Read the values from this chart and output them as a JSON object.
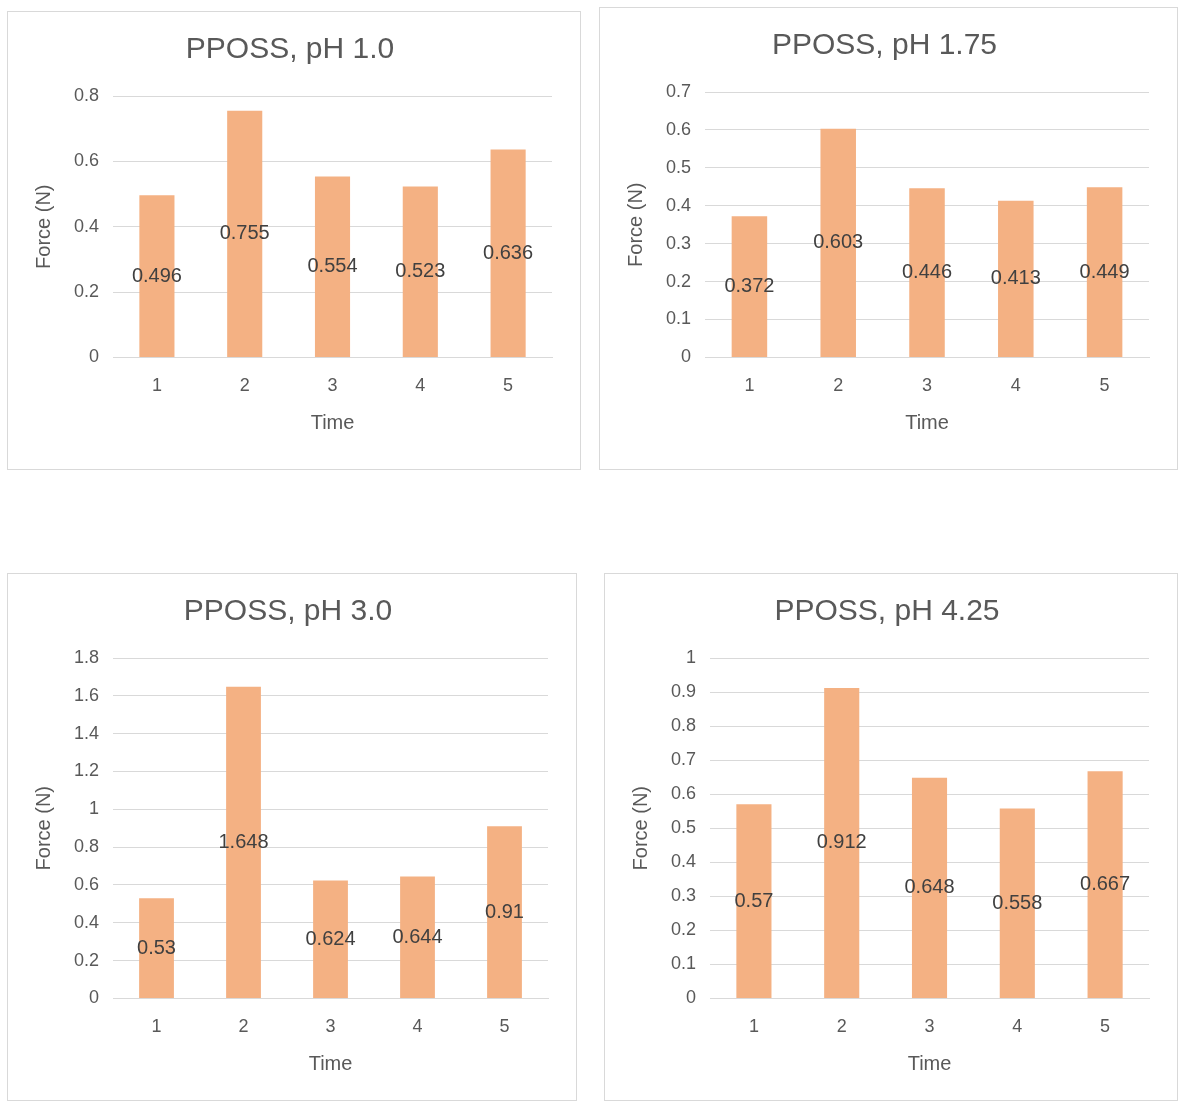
{
  "chart_data": [
    {
      "type": "bar",
      "title": "PPOSS, pH 1.0",
      "xlabel": "Time",
      "ylabel": "Force (N)",
      "categories": [
        "1",
        "2",
        "3",
        "4",
        "5"
      ],
      "values": [
        0.496,
        0.755,
        0.554,
        0.523,
        0.636
      ],
      "color": "#f4b183",
      "ylim": [
        0,
        0.8
      ],
      "yticks": [
        0,
        0.2,
        0.4,
        0.6,
        0.8
      ],
      "grid": "y",
      "legend": false,
      "data_labels": true
    },
    {
      "type": "bar",
      "title": "PPOSS, pH 1.75",
      "xlabel": "Time",
      "ylabel": "Force (N)",
      "categories": [
        "1",
        "2",
        "3",
        "4",
        "5"
      ],
      "values": [
        0.372,
        0.603,
        0.446,
        0.413,
        0.449
      ],
      "color": "#f4b183",
      "ylim": [
        0,
        0.7
      ],
      "yticks": [
        0,
        0.1,
        0.2,
        0.3,
        0.4,
        0.5,
        0.6,
        0.7
      ],
      "grid": "y",
      "legend": false,
      "data_labels": true
    },
    {
      "type": "bar",
      "title": "PPOSS, pH 3.0",
      "xlabel": "Time",
      "ylabel": "Force (N)",
      "categories": [
        "1",
        "2",
        "3",
        "4",
        "5"
      ],
      "values": [
        0.53,
        1.648,
        0.624,
        0.644,
        0.91
      ],
      "color": "#f4b183",
      "ylim": [
        0,
        1.8
      ],
      "yticks": [
        0,
        0.2,
        0.4,
        0.6,
        0.8,
        1,
        1.2,
        1.4,
        1.6,
        1.8
      ],
      "grid": "y",
      "legend": false,
      "data_labels": true
    },
    {
      "type": "bar",
      "title": "PPOSS, pH 4.25",
      "xlabel": "Time",
      "ylabel": "Force (N)",
      "categories": [
        "1",
        "2",
        "3",
        "4",
        "5"
      ],
      "values": [
        0.57,
        0.912,
        0.648,
        0.558,
        0.667
      ],
      "color": "#f4b183",
      "ylim": [
        0,
        1
      ],
      "yticks": [
        0,
        0.1,
        0.2,
        0.3,
        0.4,
        0.5,
        0.6,
        0.7,
        0.8,
        0.9,
        1
      ],
      "grid": "y",
      "legend": false,
      "data_labels": true
    }
  ]
}
